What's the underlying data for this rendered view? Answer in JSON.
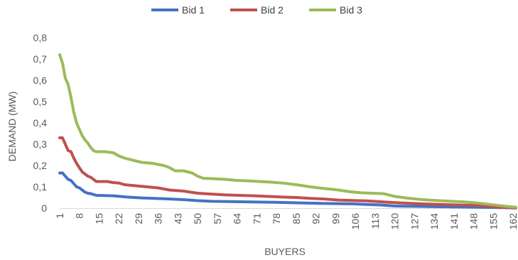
{
  "chart_data": {
    "type": "line",
    "title": "",
    "xlabel": "BUYERS",
    "ylabel": "DEMAND (MW)",
    "ylim": [
      0,
      0.8
    ],
    "y_ticks": [
      "0",
      "0,1",
      "0,2",
      "0,3",
      "0,4",
      "0,5",
      "0,6",
      "0,7",
      "0,8"
    ],
    "x_range": [
      1,
      163
    ],
    "x_ticks": [
      1,
      8,
      15,
      22,
      29,
      36,
      43,
      50,
      57,
      64,
      71,
      78,
      85,
      92,
      99,
      106,
      113,
      120,
      127,
      134,
      141,
      148,
      155,
      162
    ],
    "grid": false,
    "legend_position": "top",
    "series": [
      {
        "name": "Bid 1",
        "color": "#4472C4",
        "points": [
          [
            1,
            0.165
          ],
          [
            2,
            0.165
          ],
          [
            3,
            0.15
          ],
          [
            4,
            0.135
          ],
          [
            5,
            0.13
          ],
          [
            6,
            0.115
          ],
          [
            7,
            0.1
          ],
          [
            8,
            0.095
          ],
          [
            9,
            0.085
          ],
          [
            10,
            0.075
          ],
          [
            11,
            0.07
          ],
          [
            12,
            0.068
          ],
          [
            14,
            0.06
          ],
          [
            20,
            0.058
          ],
          [
            25,
            0.052
          ],
          [
            30,
            0.048
          ],
          [
            38,
            0.044
          ],
          [
            45,
            0.04
          ],
          [
            50,
            0.035
          ],
          [
            55,
            0.032
          ],
          [
            65,
            0.03
          ],
          [
            75,
            0.028
          ],
          [
            85,
            0.025
          ],
          [
            95,
            0.022
          ],
          [
            105,
            0.02
          ],
          [
            115,
            0.015
          ],
          [
            120,
            0.01
          ],
          [
            130,
            0.008
          ],
          [
            140,
            0.006
          ],
          [
            150,
            0.004
          ],
          [
            160,
            0.002
          ],
          [
            163,
            0.001
          ]
        ]
      },
      {
        "name": "Bid 2",
        "color": "#C0504D",
        "points": [
          [
            1,
            0.33
          ],
          [
            2,
            0.33
          ],
          [
            3,
            0.3
          ],
          [
            4,
            0.27
          ],
          [
            5,
            0.265
          ],
          [
            6,
            0.235
          ],
          [
            7,
            0.21
          ],
          [
            8,
            0.19
          ],
          [
            9,
            0.17
          ],
          [
            10,
            0.16
          ],
          [
            11,
            0.15
          ],
          [
            12,
            0.145
          ],
          [
            13,
            0.135
          ],
          [
            14,
            0.125
          ],
          [
            18,
            0.125
          ],
          [
            20,
            0.12
          ],
          [
            22,
            0.118
          ],
          [
            24,
            0.11
          ],
          [
            28,
            0.105
          ],
          [
            32,
            0.1
          ],
          [
            36,
            0.095
          ],
          [
            40,
            0.085
          ],
          [
            45,
            0.08
          ],
          [
            50,
            0.07
          ],
          [
            55,
            0.066
          ],
          [
            60,
            0.062
          ],
          [
            65,
            0.06
          ],
          [
            70,
            0.058
          ],
          [
            75,
            0.055
          ],
          [
            80,
            0.052
          ],
          [
            85,
            0.05
          ],
          [
            90,
            0.046
          ],
          [
            95,
            0.043
          ],
          [
            100,
            0.038
          ],
          [
            105,
            0.036
          ],
          [
            110,
            0.034
          ],
          [
            115,
            0.03
          ],
          [
            120,
            0.026
          ],
          [
            125,
            0.023
          ],
          [
            130,
            0.02
          ],
          [
            135,
            0.018
          ],
          [
            140,
            0.016
          ],
          [
            145,
            0.014
          ],
          [
            150,
            0.012
          ],
          [
            155,
            0.006
          ],
          [
            160,
            0.003
          ],
          [
            163,
            0.001
          ]
        ]
      },
      {
        "name": "Bid 3",
        "color": "#9BBB59",
        "points": [
          [
            1,
            0.72
          ],
          [
            2,
            0.68
          ],
          [
            3,
            0.61
          ],
          [
            4,
            0.58
          ],
          [
            5,
            0.52
          ],
          [
            6,
            0.45
          ],
          [
            7,
            0.4
          ],
          [
            8,
            0.37
          ],
          [
            9,
            0.34
          ],
          [
            10,
            0.32
          ],
          [
            11,
            0.305
          ],
          [
            12,
            0.285
          ],
          [
            13,
            0.27
          ],
          [
            14,
            0.265
          ],
          [
            17,
            0.265
          ],
          [
            20,
            0.26
          ],
          [
            22,
            0.245
          ],
          [
            24,
            0.235
          ],
          [
            26,
            0.228
          ],
          [
            30,
            0.215
          ],
          [
            34,
            0.21
          ],
          [
            38,
            0.2
          ],
          [
            40,
            0.19
          ],
          [
            42,
            0.175
          ],
          [
            45,
            0.175
          ],
          [
            48,
            0.165
          ],
          [
            50,
            0.15
          ],
          [
            52,
            0.14
          ],
          [
            56,
            0.138
          ],
          [
            60,
            0.135
          ],
          [
            64,
            0.13
          ],
          [
            68,
            0.128
          ],
          [
            72,
            0.125
          ],
          [
            76,
            0.122
          ],
          [
            80,
            0.118
          ],
          [
            85,
            0.11
          ],
          [
            90,
            0.1
          ],
          [
            95,
            0.092
          ],
          [
            100,
            0.085
          ],
          [
            104,
            0.077
          ],
          [
            108,
            0.072
          ],
          [
            112,
            0.07
          ],
          [
            116,
            0.068
          ],
          [
            120,
            0.055
          ],
          [
            124,
            0.048
          ],
          [
            128,
            0.042
          ],
          [
            132,
            0.038
          ],
          [
            136,
            0.035
          ],
          [
            140,
            0.032
          ],
          [
            144,
            0.03
          ],
          [
            148,
            0.026
          ],
          [
            152,
            0.02
          ],
          [
            156,
            0.014
          ],
          [
            160,
            0.008
          ],
          [
            163,
            0.004
          ]
        ]
      }
    ]
  }
}
